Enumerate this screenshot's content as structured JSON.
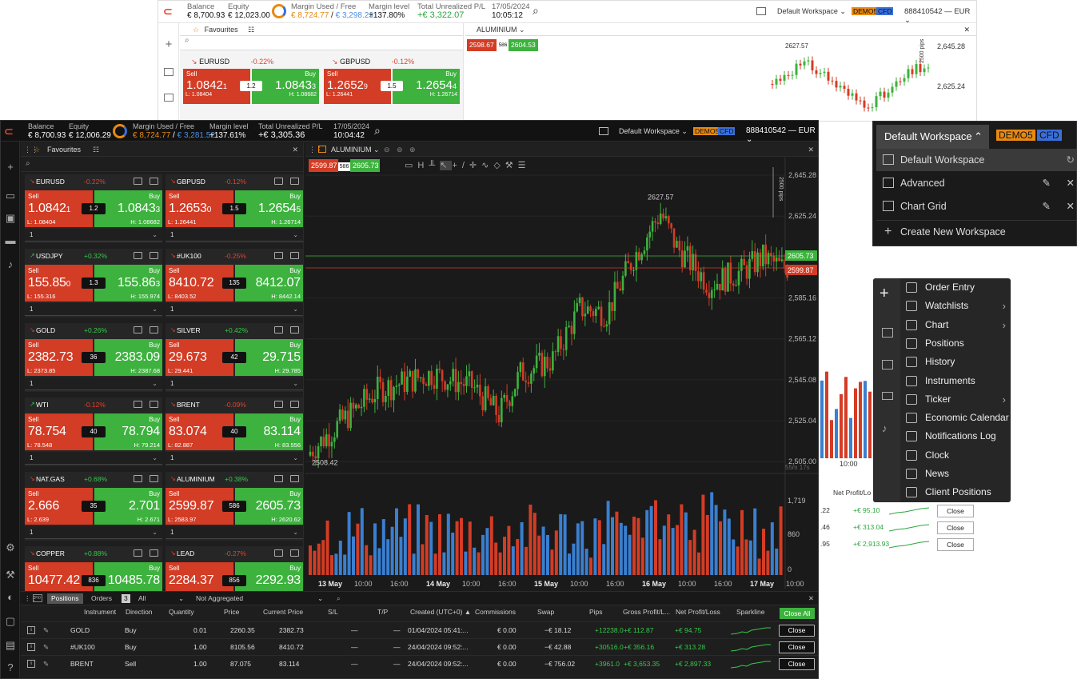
{
  "back_window": {
    "stats": [
      {
        "label": "Balance",
        "value": "€ 8,700.93"
      },
      {
        "label": "Equity",
        "value": "€ 12,023.00"
      },
      {
        "label": "Margin Used / Free",
        "value_a": "€ 8,724.77",
        "value_b": "€ 3,298.23"
      },
      {
        "label": "Margin level",
        "value": "+137.80%"
      },
      {
        "label": "Total Unrealized P/L",
        "value": "+€ 3,322.07"
      }
    ],
    "date": "17/05/2024",
    "time": "10:05:12",
    "workspace": "Default Workspace",
    "tag1": "DEMO5",
    "tag2": "CFD",
    "account": "888410542 — EUR",
    "favourites_label": "Favourites",
    "tiles": [
      {
        "name": "EURUSD",
        "change": "-0.22%",
        "sell": "1.0842",
        "sell_sup": "1",
        "buy": "1.0843",
        "buy_sup": "3",
        "spread": "1.2",
        "low": "L: 1.08404",
        "high": "H: 1.08682"
      },
      {
        "name": "GBPUSD",
        "change": "-0.12%",
        "sell": "1.2652",
        "sell_sup": "9",
        "buy": "1.2654",
        "buy_sup": "4",
        "spread": "1.5",
        "low": "L: 1.26441",
        "high": "H: 1.26714"
      }
    ],
    "chart_symbol": "ALUMINIUM",
    "bid": "2598.67",
    "bid_spread": "586",
    "ask": "2604.53",
    "y_ticks": [
      "2,645.28",
      "2,625.24"
    ],
    "peak_label": "2627.57",
    "pips_label": "2500 pips",
    "time_axis_label": "10:00",
    "pos_header": "Net Profit/Lo",
    "pos_rows": [
      {
        "left": ".22",
        "profit": "+€ 95.10",
        "btn": "Close"
      },
      {
        "left": ".46",
        "profit": "+€ 313.04",
        "btn": "Close"
      },
      {
        "left": ".95",
        "profit": "+€ 2,913.93",
        "btn": "Close"
      }
    ]
  },
  "main_window": {
    "stats": [
      {
        "label": "Balance",
        "value": "€ 8,700.93"
      },
      {
        "label": "Equity",
        "value": "€ 12,006.29"
      },
      {
        "label": "Margin Used / Free",
        "value_a": "€ 8,724.77",
        "value_b": "€ 3,281.52"
      },
      {
        "label": "Margin level",
        "value": "+137.61%"
      },
      {
        "label": "Total Unrealized P/L",
        "value": "+€ 3,305.36"
      }
    ],
    "date": "17/05/2024",
    "time": "10:04:42",
    "workspace": "Default Workspace",
    "tag1": "DEMO5",
    "tag2": "CFD",
    "account": "888410542 — EUR",
    "favourites_label": "Favourites",
    "sell_label": "Sell",
    "buy_label": "Buy",
    "qty": "1",
    "tiles": [
      {
        "name": "EURUSD",
        "change": "-0.22%",
        "dir": "down",
        "sell": "1.0842",
        "sell_sup": "1",
        "buy": "1.0843",
        "buy_sup": "3",
        "spread": "1.2",
        "low": "L: 1.08404",
        "high": "H: 1.08682"
      },
      {
        "name": "GBPUSD",
        "change": "-0.12%",
        "dir": "down",
        "sell": "1.2653",
        "sell_sup": "0",
        "buy": "1.2654",
        "buy_sup": "5",
        "spread": "1.5",
        "low": "L: 1.26441",
        "high": "H: 1.26714"
      },
      {
        "name": "USDJPY",
        "change": "+0.32%",
        "dir": "up",
        "sell": "155.85",
        "sell_sup": "0",
        "buy": "155.86",
        "buy_sup": "3",
        "spread": "1.3",
        "low": "L: 155.316",
        "high": "H: 155.974"
      },
      {
        "name": "#UK100",
        "change": "-0.25%",
        "dir": "down",
        "sell": "8410.72",
        "sell_sup": "",
        "buy": "8412.07",
        "buy_sup": "",
        "spread": "135",
        "low": "L: 8403.52",
        "high": "H: 8442.14"
      },
      {
        "name": "GOLD",
        "change": "+0.26%",
        "dir": "down",
        "sell": "2382.73",
        "sell_sup": "",
        "buy": "2383.09",
        "buy_sup": "",
        "spread": "36",
        "low": "L: 2373.85",
        "high": "H: 2387.68"
      },
      {
        "name": "SILVER",
        "change": "+0.42%",
        "dir": "down",
        "sell": "29.673",
        "sell_sup": "",
        "buy": "29.715",
        "buy_sup": "",
        "spread": "42",
        "low": "L: 29.441",
        "high": "H: 29.785"
      },
      {
        "name": "WTI",
        "change": "-0.12%",
        "dir": "up",
        "sell": "78.754",
        "sell_sup": "",
        "buy": "78.794",
        "buy_sup": "",
        "spread": "40",
        "low": "L: 78.548",
        "high": "H: 79.214"
      },
      {
        "name": "BRENT",
        "change": "-0.09%",
        "dir": "down",
        "sell": "83.074",
        "sell_sup": "",
        "buy": "83.114",
        "buy_sup": "",
        "spread": "40",
        "low": "L: 82.887",
        "high": "H: 83.556"
      },
      {
        "name": "NAT.GAS",
        "change": "+0.68%",
        "dir": "down",
        "sell": "2.666",
        "sell_sup": "",
        "buy": "2.701",
        "buy_sup": "",
        "spread": "35",
        "low": "L: 2.639",
        "high": "H: 2.671"
      },
      {
        "name": "ALUMINIUM",
        "change": "+0.38%",
        "dir": "down",
        "sell": "2599.87",
        "sell_sup": "",
        "buy": "2605.73",
        "buy_sup": "",
        "spread": "586",
        "low": "L: 2583.97",
        "high": "H: 2620.62"
      },
      {
        "name": "COPPER",
        "change": "+0.88%",
        "dir": "down",
        "sell": "10477.42",
        "sell_sup": "",
        "buy": "10485.78",
        "buy_sup": "",
        "spread": "836",
        "low": "",
        "high": ""
      },
      {
        "name": "LEAD",
        "change": "-0.27%",
        "dir": "down",
        "sell": "2284.37",
        "sell_sup": "",
        "buy": "2292.93",
        "buy_sup": "",
        "spread": "856",
        "low": "",
        "high": ""
      }
    ],
    "chart_symbol": "ALUMINIUM",
    "bid": "2599.87",
    "bid_spread": "586",
    "ask": "2605.73",
    "ask_tag": "2605.73",
    "bid_tag": "2599.87",
    "pips_label": "2500 pips",
    "peak_label": "2627.57",
    "low_label": "2508.42",
    "y_ticks": [
      "2,645.28",
      "2,625.24",
      "2,605.20",
      "2,585.16",
      "2,565.12",
      "2,545.08",
      "2,525.04",
      "2,505.00"
    ],
    "vol_ticks": [
      "1,719",
      "860",
      "0"
    ],
    "countdown": "55m 17s",
    "x_ticks": [
      "13 May",
      "10:00",
      "16:00",
      "14 May",
      "10:00",
      "16:00",
      "15 May",
      "10:00",
      "16:00",
      "16 May",
      "10:00",
      "16:00",
      "17 May",
      "10:00"
    ],
    "positions": {
      "tab_positions": "Positions",
      "tab_orders": "Orders",
      "orders_count": "3",
      "filter": "All",
      "aggregation": "Not Aggregated",
      "headers": [
        "Instrument",
        "Direction",
        "Quantity",
        "Price",
        "Current Price",
        "S/L",
        "T/P",
        "Created (UTC+0) ▲",
        "Commissions",
        "Swap",
        "Pips",
        "Gross Profit/L...",
        "Net Profit/Loss",
        "Sparkline"
      ],
      "close_all": "Close All",
      "rows": [
        {
          "instrument": "GOLD",
          "direction": "Buy",
          "quantity": "0.01",
          "price": "2260.35",
          "current": "2382.73",
          "sl": "—",
          "tp": "—",
          "created": "01/04/2024 05:41:...",
          "commission": "€ 0.00",
          "swap": "−€ 18.12",
          "pips": "+12238.0",
          "gross": "+€ 112.87",
          "net": "+€ 94.75",
          "btn": "Close"
        },
        {
          "instrument": "#UK100",
          "direction": "Buy",
          "quantity": "1.00",
          "price": "8105.56",
          "current": "8410.72",
          "sl": "—",
          "tp": "—",
          "created": "24/04/2024 09:52:...",
          "commission": "€ 0.00",
          "swap": "−€ 42.88",
          "pips": "+30516.0",
          "gross": "+€ 356.16",
          "net": "+€ 313.28",
          "btn": "Close"
        },
        {
          "instrument": "BRENT",
          "direction": "Sell",
          "quantity": "1.00",
          "price": "87.075",
          "current": "83.114",
          "sl": "—",
          "tp": "—",
          "created": "24/04/2024 09:52:...",
          "commission": "€ 0.00",
          "swap": "−€ 756.02",
          "pips": "+3961.0",
          "gross": "+€ 3,653.35",
          "net": "+€ 2,897.33",
          "btn": "Close"
        }
      ]
    }
  },
  "workspace_menu": {
    "button": "Default Workspace",
    "tag1": "DEMO5",
    "tag2": "CFD",
    "items": [
      "Default Workspace",
      "Advanced",
      "Chart Grid"
    ],
    "create": "Create New Workspace"
  },
  "add_menu": {
    "items": [
      {
        "label": "Order Entry",
        "sub": false
      },
      {
        "label": "Watchlists",
        "sub": true
      },
      {
        "label": "Chart",
        "sub": true
      },
      {
        "label": "Positions",
        "sub": false
      },
      {
        "label": "History",
        "sub": false
      },
      {
        "label": "Instruments",
        "sub": false
      },
      {
        "label": "Ticker",
        "sub": true
      },
      {
        "label": "Economic Calendar",
        "sub": false
      },
      {
        "label": "Notifications Log",
        "sub": false
      },
      {
        "label": "Clock",
        "sub": false
      },
      {
        "label": "News",
        "sub": false
      },
      {
        "label": "Client Positions",
        "sub": false
      }
    ]
  },
  "colors": {
    "up": "#35c948",
    "down": "#e0432f",
    "sell_bg": "#d33c25",
    "buy_bg": "#3db23e",
    "vol_blue": "#3a7fd0",
    "accent_orange": "#e88a12",
    "cfd_blue": "#3a6fd8"
  }
}
